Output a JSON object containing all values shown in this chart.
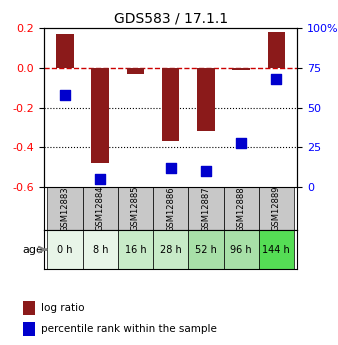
{
  "title": "GDS583 / 17.1.1",
  "samples": [
    "GSM12883",
    "GSM12884",
    "GSM12885",
    "GSM12886",
    "GSM12887",
    "GSM12888",
    "GSM12889"
  ],
  "ages": [
    "0 h",
    "8 h",
    "16 h",
    "28 h",
    "52 h",
    "96 h",
    "144 h"
  ],
  "log_ratio": [
    0.17,
    -0.48,
    -0.03,
    -0.37,
    -0.32,
    -0.01,
    0.18
  ],
  "percentile_rank": [
    58,
    5,
    null,
    12,
    10,
    28,
    68
  ],
  "ylim_left": [
    -0.6,
    0.2
  ],
  "ylim_right": [
    0,
    100
  ],
  "yticks_left": [
    -0.6,
    -0.4,
    -0.2,
    0.0,
    0.2
  ],
  "yticks_right": [
    0,
    25,
    50,
    75,
    100
  ],
  "yticklabels_right": [
    "0",
    "25",
    "50",
    "75",
    "100%"
  ],
  "bar_color": "#8B1A1A",
  "dot_color": "#0000CD",
  "zero_line_color": "#CC0000",
  "dotted_line_color": "#000000",
  "age_colors": [
    "#E8F5E8",
    "#E8F5E8",
    "#C8EBC8",
    "#C8EBC8",
    "#A8E0A8",
    "#A8E0A8",
    "#55DD55"
  ],
  "gsm_bg_color": "#C8C8C8",
  "bar_width": 0.5,
  "dot_size": 60,
  "legend_red_label": "log ratio",
  "legend_blue_label": "percentile rank within the sample"
}
